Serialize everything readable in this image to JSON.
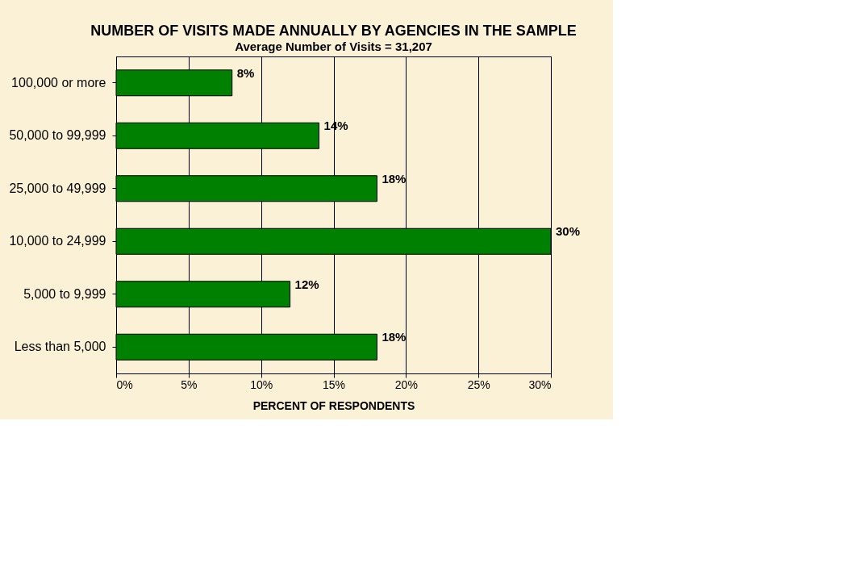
{
  "chart_data": {
    "type": "bar",
    "orientation": "horizontal",
    "title": "NUMBER OF VISITS MADE ANNUALLY BY AGENCIES IN THE SAMPLE",
    "subtitle": "Average Number of Visits = 31,207",
    "xlabel": "PERCENT OF RESPONDENTS",
    "categories": [
      "100,000 or more",
      "50,000 to 99,999",
      "25,000 to 49,999",
      "10,000 to 24,999",
      "5,000 to 9,999",
      "Less than 5,000"
    ],
    "values": [
      8,
      14,
      18,
      30,
      12,
      18
    ],
    "value_labels": [
      "8%",
      "14%",
      "18%",
      "30%",
      "12%",
      "18%"
    ],
    "color": "#008000",
    "xlim": [
      0,
      30
    ],
    "xticks": [
      {
        "value": 0,
        "label": "0%"
      },
      {
        "value": 5,
        "label": "5%"
      },
      {
        "value": 10,
        "label": "10%"
      },
      {
        "value": 15,
        "label": "15%"
      },
      {
        "value": 20,
        "label": "20%"
      },
      {
        "value": 25,
        "label": "25%"
      },
      {
        "value": 30,
        "label": "30%"
      }
    ],
    "grid": "x"
  }
}
